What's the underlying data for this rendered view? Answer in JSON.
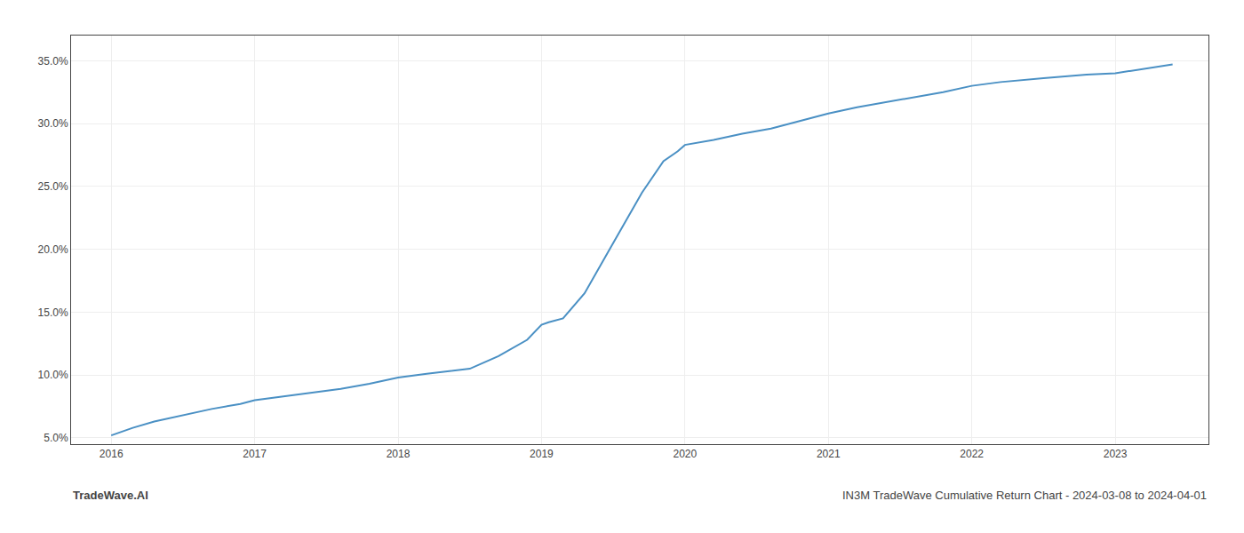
{
  "chart_data": {
    "type": "line",
    "annotations": [
      "TradeWave.AI",
      "IN3M TradeWave Cumulative Return Chart - 2024-03-08 to 2024-04-01"
    ],
    "x": [
      2016.0,
      2016.15,
      2016.3,
      2016.5,
      2016.7,
      2016.9,
      2017.0,
      2017.2,
      2017.4,
      2017.6,
      2017.8,
      2018.0,
      2018.2,
      2018.5,
      2018.7,
      2018.9,
      2019.0,
      2019.05,
      2019.15,
      2019.3,
      2019.5,
      2019.7,
      2019.85,
      2019.95,
      2020.0,
      2020.05,
      2020.2,
      2020.4,
      2020.6,
      2020.8,
      2021.0,
      2021.2,
      2021.5,
      2021.8,
      2022.0,
      2022.2,
      2022.5,
      2022.8,
      2023.0,
      2023.4
    ],
    "values": [
      5.2,
      5.8,
      6.3,
      6.8,
      7.3,
      7.7,
      8.0,
      8.3,
      8.6,
      8.9,
      9.3,
      9.8,
      10.1,
      10.5,
      11.5,
      12.8,
      14.0,
      14.2,
      14.5,
      16.5,
      20.5,
      24.5,
      27.0,
      27.8,
      28.3,
      28.4,
      28.7,
      29.2,
      29.6,
      30.2,
      30.8,
      31.3,
      31.9,
      32.5,
      33.0,
      33.3,
      33.6,
      33.9,
      34.0,
      34.7
    ],
    "color": "#4a90c4",
    "xlim": [
      2015.72,
      2023.65
    ],
    "xticks": [
      2016,
      2017,
      2018,
      2019,
      2020,
      2021,
      2022,
      2023
    ],
    "ylim": [
      4.5,
      37.0
    ],
    "yticks": [
      {
        "value": 5.0,
        "label": "5.0%"
      },
      {
        "value": 10.0,
        "label": "10.0%"
      },
      {
        "value": 15.0,
        "label": "15.0%"
      },
      {
        "value": 20.0,
        "label": "20.0%"
      },
      {
        "value": 25.0,
        "label": "25.0%"
      },
      {
        "value": 30.0,
        "label": "30.0%"
      },
      {
        "value": 35.0,
        "label": "35.0%"
      }
    ],
    "grid": true
  }
}
